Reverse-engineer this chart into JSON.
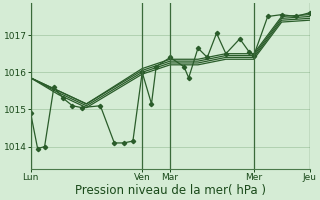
{
  "background_color": "#d5ecd5",
  "grid_color": "#aaccaa",
  "line_color": "#2a5c2a",
  "marker_color": "#2a5c2a",
  "xlabel": "Pression niveau de la mer( hPa )",
  "xlabel_fontsize": 8.5,
  "yticks": [
    1014,
    1015,
    1016,
    1017
  ],
  "ylim": [
    1013.4,
    1017.85
  ],
  "xlim": [
    0,
    120
  ],
  "day_ticks_x": [
    0,
    48,
    60,
    96,
    120
  ],
  "day_labels": [
    "Lun",
    "Ven",
    "Mar",
    "Mer",
    "Jeu"
  ],
  "vlines": [
    0,
    48,
    60,
    96,
    120
  ],
  "series": [
    [
      0,
      1014.9,
      3,
      1013.95,
      6,
      1014.0,
      10,
      1015.6,
      14,
      1015.3,
      18,
      1015.1,
      22,
      1015.05,
      30,
      1015.1,
      36,
      1014.1,
      40,
      1014.1,
      44,
      1014.15,
      48,
      1016.0,
      52,
      1015.15,
      54,
      1016.15,
      60,
      1016.4,
      66,
      1016.15,
      68,
      1015.85,
      72,
      1016.65,
      76,
      1016.4,
      80,
      1017.05,
      84,
      1016.5,
      90,
      1016.9,
      94,
      1016.55,
      96,
      1016.45,
      102,
      1017.5,
      108,
      1017.55,
      114,
      1017.5,
      120,
      1017.6
    ],
    [
      0,
      1015.85,
      12,
      1015.5,
      24,
      1015.15,
      48,
      1016.1,
      60,
      1016.35,
      72,
      1016.35,
      84,
      1016.5,
      96,
      1016.5,
      108,
      1017.5,
      120,
      1017.55
    ],
    [
      0,
      1015.85,
      12,
      1015.5,
      24,
      1015.15,
      48,
      1016.05,
      60,
      1016.3,
      72,
      1016.3,
      84,
      1016.45,
      96,
      1016.45,
      108,
      1017.45,
      120,
      1017.5
    ],
    [
      0,
      1015.85,
      12,
      1015.45,
      24,
      1015.1,
      48,
      1016.0,
      60,
      1016.25,
      72,
      1016.25,
      84,
      1016.4,
      96,
      1016.4,
      108,
      1017.4,
      120,
      1017.45
    ],
    [
      0,
      1015.85,
      12,
      1015.4,
      24,
      1015.05,
      48,
      1015.95,
      60,
      1016.2,
      72,
      1016.2,
      84,
      1016.35,
      96,
      1016.35,
      108,
      1017.35,
      120,
      1017.4
    ]
  ]
}
